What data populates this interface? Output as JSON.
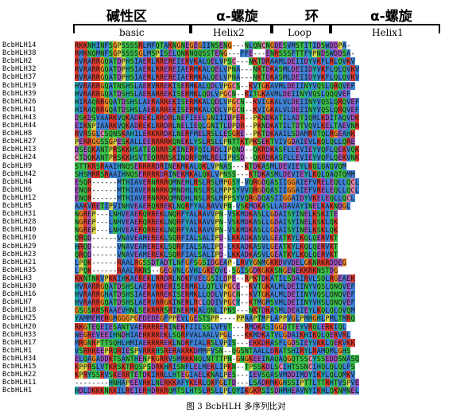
{
  "header": {
    "regions": [
      {
        "cn": "碱性区",
        "en": "basic"
      },
      {
        "cn": "α-螺旋",
        "en": "Helix2"
      },
      {
        "cn": "环",
        "en": "Loop"
      },
      {
        "cn": "α-螺旋",
        "en": "Helix1"
      }
    ]
  },
  "colors": {
    "R": "#e03a2e",
    "K": "#e03a2e",
    "E": "#a656c4",
    "D": "#a656c4",
    "L": "#3f82d6",
    "I": "#3f82d6",
    "V": "#3f82d6",
    "M": "#3f82d6",
    "A": "#3f82d6",
    "F": "#3f82d6",
    "W": "#3f82d6",
    "N": "#3bbf4a",
    "Q": "#3bbf4a",
    "S": "#3bbf4a",
    "T": "#3bbf4a",
    "G": "#f08a24",
    "P": "#d9d64a",
    "C": "#e07fa6",
    "H": "#1ea7a5",
    "Y": "#1ea7a5"
  },
  "alignment": [
    {
      "name": "BcbHLH14",
      "seq": "RKKNHINFSGPSSSSRLMFQTAKNGNEGEGIINSENG---NLQNCNGDESVMSTITIDSWDDPA-"
    },
    {
      "name": "BcbHLH38",
      "seq": "RMKNQMNFSGPSSSSGLMSPISELQNKNQQSSTENG---FFE---ENRSSSFTTFYPNDSWDDSA-"
    },
    {
      "name": "BcbHLH2",
      "seq": "RVRARRGQATDPHSIAERLRREREIERVKALQELVPSC---NKTDRAAMLDEIIDYVKFLRLQVKV"
    },
    {
      "name": "BcbHLH32",
      "seq": "RVRARRGQATDPHSIAERLRREREIAERMKALQELVPNA---NKTDKASMLDEIIDYVKFLQLQVKV"
    },
    {
      "name": "BcbHLH37",
      "seq": "RVRARRGQATDPHSIAERLRREREIAERMKALQELVPNA---NKTDKASMLDEIIDYVKFLQLQVKV"
    },
    {
      "name": "BcbHLH19",
      "seq": "HVRARRGQATNSHSLAERVRREKISERMKALQDLVPGCS--KVTGKAVMLDEIINYVQSLQRQVEF"
    },
    {
      "name": "BcbHLH39",
      "seq": "HVRARRGQATDSHSLAERARREKISERMKLQDLVPGCN--KITGKAVMLDEIINYVQSLQQQVEF"
    },
    {
      "name": "BcbHLH26",
      "seq": "HIRAQRRGQATDSHSLAERARREKISERMKALQDLVPGCN--KVIGKALVLDEIINYVQSLQRQVEF"
    },
    {
      "name": "BcbHLH41",
      "seq": "HIRAQRRGQATDSHSLAERARREKISERMKALQDLVPGCN--KVIGKALVLDEIINYVQSLQRQVEF"
    },
    {
      "name": "BcbHLH43",
      "seq": "DSKDSVAARKVQKADREKLRRDRLNEFIEELGNIIIDPER--PKNDKATILADTIQMLKDITAQVDK"
    },
    {
      "name": "BcbHLH44",
      "seq": "EIKNPIAARKVQKADREKLRRDRLNELIEQLGNITLDPDR--PKNDKATILTDTVQVLKELTAEVNR"
    },
    {
      "name": "BcbHLH8",
      "seq": "RVRSGLCSQNSKAHILERKRRDKLNERFMELRSLLESGRE--PKTDKAAILSDAMRVTQLRGEAHK"
    },
    {
      "name": "BcbHLH27",
      "seq": "PERRGGSSGPESKALLEERRRRKQNEKLYSLRSLLPNTTKTPKSEKTVIVGDAIEVLKQLQLLQRE"
    },
    {
      "name": "BcbHLH13",
      "seq": "DSEQKANTPRSKKHSATEQRRRSKINERFQILRDLIPQND--QKRDKASFLLEVIEYVQFLQEKVQK"
    },
    {
      "name": "BcbHLH24",
      "seq": "CTDQKANTPRSKKHSVTEQRRRSKINDRFQMLRELIPHSD--QKRDKASFLLEVIEYVQFLQEKVNK"
    },
    {
      "name": "BcbHLH9",
      "seq": "STTKRSRAAIHNQSERRRRDRINEKMKALQKLVPNAS---KTDKASMLDEVIEYLKQLQAQVQM"
    },
    {
      "name": "BcbHLH42",
      "seq": "SHSMRRSRAAIHNQSERRRRDRINEKMKALQKLVPNSS---KTDKASMLDEVIEYLKQLQAQTQMM"
    },
    {
      "name": "BcbHLH4",
      "seq": "ESQR------MTHIAVERNRRRQMNEHLRSLRSLMPGSY-VQRGDQASIIGGAIEFVRELEQLLQCL"
    },
    {
      "name": "BcbHLH6",
      "seq": "ENQR------MTHIAVERNRRKQMNDHLNSLRSLMPPSYVVQRGDQASIIGGAIEFVRELEQLLQCL"
    },
    {
      "name": "BcbHLH12",
      "seq": "ENQR------MTHIAVERNRRKQMNDHLNSLRSLMPPSYVQRGDQASIIGGAIDYVKELEQLLQCL"
    },
    {
      "name": "BcbHLH5",
      "seq": "AAKVRETIPVINHVEAERQRREKLNQRFYALRAVVPN-VSKMDKASLLADAVAYINELKAKNDGL"
    },
    {
      "name": "BcbHLH31",
      "seq": "NGREP---LNHVEAERQRREKLNQRFYALRAVVPN-VSKMDKASLLGDAISYINELKSKITE"
    },
    {
      "name": "BcbHLH28",
      "seq": "NGREP---LNHVEAERQRREKLNQRFYALRAVVPN-VSKMDKASLLGDAISYINELKSKLQK"
    },
    {
      "name": "BcbHLH40",
      "seq": "NGREP---LNHVEAERQRREKLNQRFYALRAVVPN-VSKMDKASLLGDAISYINELKSKLQK"
    },
    {
      "name": "BcbHLH10",
      "seq": "QRQD------VNAVEAMEREKLSQRFIALSALIPD-LKKADKASVLGEATKYLKQLQERVKT"
    },
    {
      "name": "BcbHLH29",
      "seq": "HRQD------VNAVEAMEREKLSQRFIALSALIPD-LKKADKASVLGEATKYLKQLQERVKT"
    },
    {
      "name": "BcbHLH23",
      "seq": "QRQD------VNAVEAMEREKLSQRFIALSALIPD-LKKADKASVLGEATKYLKQLQERVKT"
    },
    {
      "name": "BcbHLH21",
      "seq": "LPQK------RAALRGSSDTADTLNFGFSGSIDGEAP-LRVYGNMGKRDVVDELGKNRKRDDEG"
    },
    {
      "name": "BcbHLH35",
      "seq": "LPQK------RAALRKNS--GEGVNLGVHLGKEQVE-SGISGDKGKKSNGENEKKRKNSTDG"
    },
    {
      "name": "BcbHLH3",
      "seq": "KKNTNKVPKKIHKAEREKLRRDRLNDKFVELGSILDPE--RPKTDKATILSDAIRVLSQLRGEAEK"
    },
    {
      "name": "BcbHLH30",
      "seq": "HVRARRGQATDSHSLAERVRRERISERMKLLQTLVPGCE--KVTGKALMLDEIINYVQSLQNQVEF"
    },
    {
      "name": "BcbHLH16",
      "seq": "HVRARRGHATDSHSIAERARREKISERMKLLQDLVPGCN--KVTGKALMLDEIINYVQSLQNQVEF"
    },
    {
      "name": "BcbHLH7",
      "seq": "HVRARRGQATDSHSLAERVRRGKINERLRCLQDIVPGCY--KTMGMSVMLDEIINYVHSLQNQVEF"
    },
    {
      "name": "BcbHLH18",
      "seq": "GSGSKRSRAAEVHNLSEKRRRSRINEKMKALQNLIPNS---NKTDKASMLDEAIEYLKQLQLQVQM"
    },
    {
      "name": "BcbHLH25",
      "seq": "YAMMEMERGMGGGPGEDEDEGFPPEVLGESTSPP----PPAAPTMPLAPPVGLPMHGHLPMLTMRQ"
    },
    {
      "name": "BcbHLH20",
      "seq": "RKGTEQEIESANTVAERRRRERINEKFIILSSLVFVT---RMDKASIGGDTTEYVRQLERKIQL"
    },
    {
      "name": "BcbHLH33",
      "seq": "WEGREVEEIHNDHIAERKRREKLSQRFVALAALVPGL---KKMDKATVLGDAIKHIKQLQERVRL"
    },
    {
      "name": "BcbHLH17",
      "seq": "MRGNRPTTSQHLHMIAERRRREKLNDRFIALRSLVPIS---EKKDRASFLGDSIEYVKKLQEKVKK"
    },
    {
      "name": "BcbHLH1",
      "seq": "VSRRREEPRQRIESPVRRRHSRERAKRKDMMPVSN--QGSNTAALLDRATSHIRYLRAMQMLGHS"
    },
    {
      "name": "BcbHLH34",
      "seq": "ELQAGADDKTSANTHENPKGRRVSMRKKNQLNTTTPN-GNGKEEINAQAQGQTSSCYSSEDDSNASQ"
    },
    {
      "name": "BcbHLH15",
      "seq": "KPPRSLVTKRSKTRQSPSDRKHRISNFLELMEKLIPKN--TPSSKDLSCIHTSSNCIHQLQLQLFS"
    },
    {
      "name": "BcbHLH22",
      "seq": "KPRYSSRVSKERRTETDKIRRLLHTEGIAELKNALPES---IEVSQASVMDDIMDYIKYLQLQMKV"
    },
    {
      "name": "BcbHLH11",
      "seq": "--------HNHAPEEVRKLNERKKAFYKERLQKFGLTD---LSADRMKGHSSIPTTLTTRHTVSPVE"
    },
    {
      "name": "BcbHLH1 ",
      "seq": "HDLDKKKNKKILREIERHDRKRQMTSLHTSLRSLLPLQYIKGKRSISDHMHEAVNYIKHLQKNMNEL"
    }
  ],
  "caption": "图 3 BcbHLH 多序列比对"
}
